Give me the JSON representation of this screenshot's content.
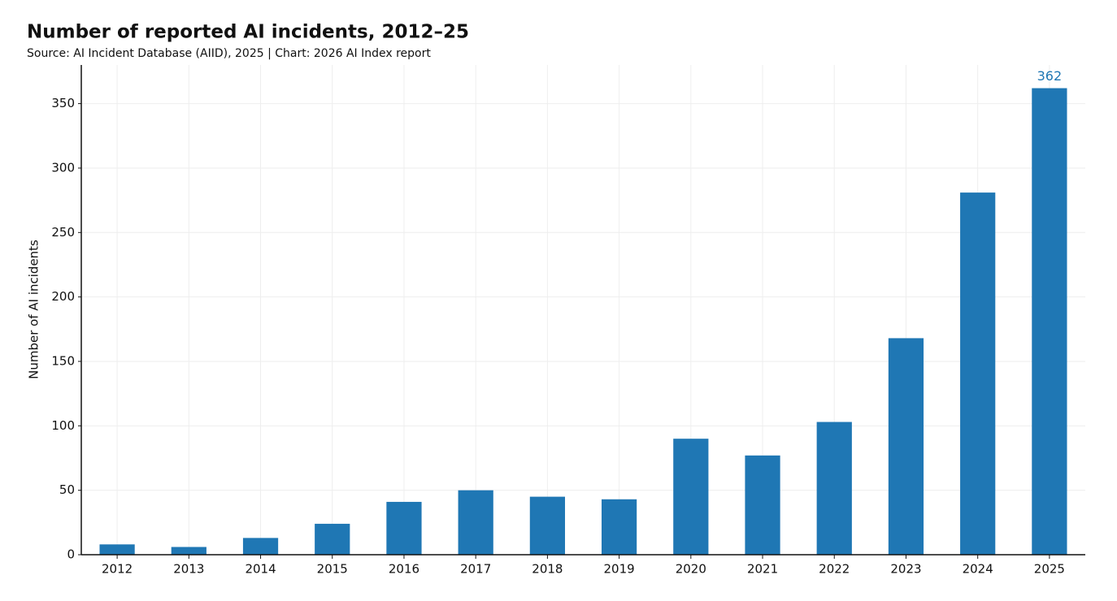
{
  "chart_data": {
    "type": "bar",
    "title": "Number of reported AI incidents, 2012–25",
    "subtitle": "Source: AI Incident Database (AIID), 2025 | Chart: 2026 AI Index report",
    "y_label": "Number of AI incidents",
    "categories": [
      "2012",
      "2013",
      "2014",
      "2015",
      "2016",
      "2017",
      "2018",
      "2019",
      "2020",
      "2021",
      "2022",
      "2023",
      "2024",
      "2025"
    ],
    "values": [
      8,
      6,
      13,
      24,
      41,
      50,
      45,
      43,
      90,
      77,
      103,
      168,
      281,
      362
    ],
    "color": "#1f77b4",
    "ylim": [
      0,
      380
    ],
    "yticks": [
      0,
      50,
      100,
      150,
      200,
      250,
      300,
      350
    ],
    "grid": true
  }
}
